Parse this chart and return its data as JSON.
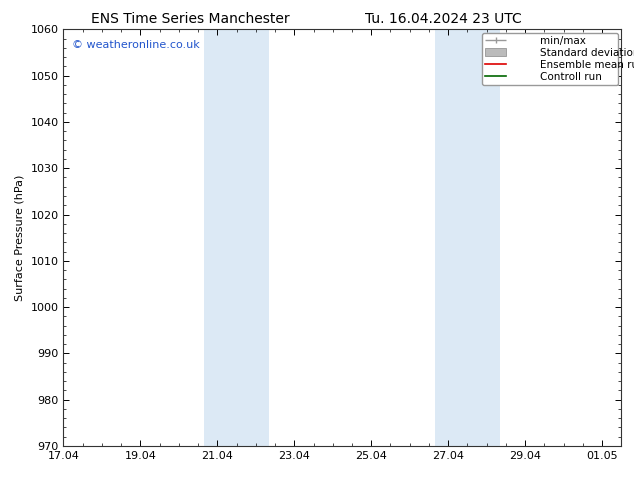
{
  "title_left": "ENS Time Series Manchester",
  "title_right": "Tu. 16.04.2024 23 UTC",
  "ylabel": "Surface Pressure (hPa)",
  "xlabel": "",
  "ylim": [
    970,
    1060
  ],
  "yticks": [
    970,
    980,
    990,
    1000,
    1010,
    1020,
    1030,
    1040,
    1050,
    1060
  ],
  "xtick_labels": [
    "17.04",
    "19.04",
    "21.04",
    "23.04",
    "25.04",
    "27.04",
    "29.04",
    "01.05"
  ],
  "xtick_positions": [
    0.0,
    2.0,
    4.0,
    6.0,
    8.0,
    10.0,
    12.0,
    14.0
  ],
  "xlim": [
    0.0,
    14.5
  ],
  "shaded_bands": [
    {
      "x_start": 3.65,
      "x_end": 4.35,
      "color": "#dce9f5"
    },
    {
      "x_start": 4.35,
      "x_end": 5.35,
      "color": "#dce9f5"
    },
    {
      "x_start": 9.65,
      "x_end": 10.35,
      "color": "#dce9f5"
    },
    {
      "x_start": 10.35,
      "x_end": 11.35,
      "color": "#dce9f5"
    }
  ],
  "watermark": "© weatheronline.co.uk",
  "watermark_color": "#2255cc",
  "background_color": "#ffffff",
  "plot_bg_color": "#ffffff",
  "legend_items": [
    {
      "label": "min/max",
      "color": "#999999",
      "style": "line_with_caps"
    },
    {
      "label": "Standard deviation",
      "color": "#bbbbbb",
      "style": "bar"
    },
    {
      "label": "Ensemble mean run",
      "color": "#dd0000",
      "style": "line"
    },
    {
      "label": "Controll run",
      "color": "#006600",
      "style": "line"
    }
  ],
  "tick_direction": "in",
  "minor_ticks": true,
  "grid": false,
  "figsize": [
    6.34,
    4.9
  ],
  "dpi": 100,
  "font_size_ticks": 8,
  "font_size_label": 8,
  "font_size_title": 10,
  "font_size_legend": 7.5,
  "font_size_watermark": 8
}
